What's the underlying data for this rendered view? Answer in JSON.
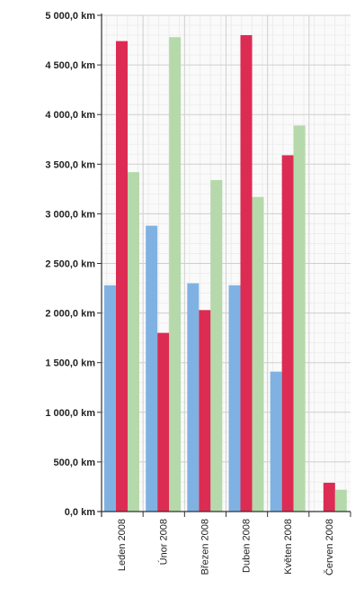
{
  "chart_data": {
    "type": "bar",
    "title": "",
    "xlabel": "",
    "ylabel": "",
    "categories": [
      "Leden 2008",
      "Únor 2008",
      "Březen 2008",
      "Duben 2008",
      "Květen 2008",
      "Červen 2008"
    ],
    "series": [
      {
        "color": "#7fb2e3",
        "values": [
          2280,
          2880,
          2300,
          2280,
          1410,
          0
        ]
      },
      {
        "color": "#dc2c53",
        "values": [
          4740,
          1800,
          2030,
          4800,
          3590,
          290
        ]
      },
      {
        "color": "#b5d9aa",
        "values": [
          3420,
          4780,
          3340,
          3170,
          3890,
          220
        ]
      }
    ],
    "ylim": [
      0,
      5000
    ],
    "yticks": [
      0,
      500,
      1000,
      1500,
      2000,
      2500,
      3000,
      3500,
      4000,
      4500,
      5000
    ],
    "ytick_labels": [
      "0,0 km",
      "500,0 km",
      "1 000,0 km",
      "1 500,0 km",
      "2 000,0 km",
      "2 500,0 km",
      "3 000,0 km",
      "3 500,0 km",
      "4 000,0 km",
      "4 500,0 km",
      "5 000,0 km"
    ],
    "grid": true,
    "legend": "none"
  }
}
